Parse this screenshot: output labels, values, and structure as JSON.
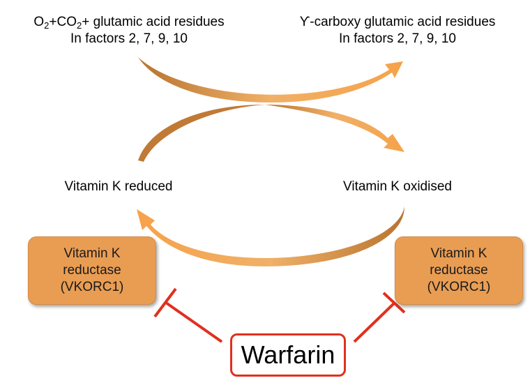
{
  "top_left": {
    "line1_parts": [
      "O",
      "2",
      "+CO",
      "2",
      "+ glutamic acid residues"
    ],
    "line2": "In factors 2, 7, 9, 10"
  },
  "top_right": {
    "line1": "ϒ-carboxy glutamic acid residues",
    "line2": "In factors 2, 7, 9, 10"
  },
  "vitamin_k_reduced": "Vitamin K reduced",
  "vitamin_k_oxidised": "Vitamin K oxidised",
  "enzyme_left": {
    "line1": "Vitamin K",
    "line2": "reductase",
    "line3": "(VKORC1)"
  },
  "enzyme_right": {
    "line1": "Vitamin K",
    "line2": "reductase",
    "line3": "(VKORC1)"
  },
  "warfarin": "Warfarin",
  "colors": {
    "arrow": "#d6893f",
    "enzyme_fill": "#e99d53",
    "inhibitor": "#e0301e"
  }
}
